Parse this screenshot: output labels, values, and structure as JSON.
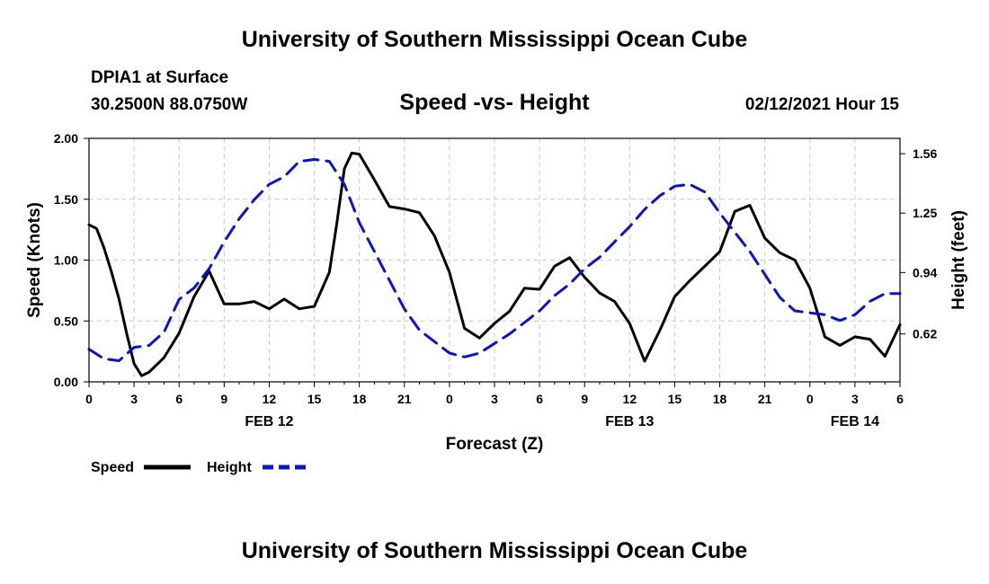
{
  "header": {
    "title": "University of Southern Mississippi Ocean Cube",
    "station": "DPIA1 at Surface",
    "coordinates": "30.2500N 88.0750W",
    "chart_title": "Speed -vs- Height",
    "datetime": "02/12/2021 Hour 15"
  },
  "footer": {
    "title": "University of Southern Mississippi Ocean Cube"
  },
  "legend": [
    {
      "label": "Speed",
      "color": "#000000",
      "style": "solid"
    },
    {
      "label": "Height",
      "color": "#0a14c8",
      "style": "dashed"
    }
  ],
  "chart_data": {
    "type": "line",
    "title": "Speed -vs- Height",
    "xlabel": "Forecast (Z)",
    "ylabel": "Speed (Knots)",
    "y2label": "Height (feet)",
    "xlim": [
      0,
      54
    ],
    "ylim": [
      0,
      2.0
    ],
    "y2lim": [
      0.37,
      1.64
    ],
    "x_ticks": [
      0,
      1.5,
      3.5,
      5.5,
      7.5,
      9.5,
      11.5,
      13.5,
      15.5,
      17.5,
      19.5,
      21.5,
      23.5,
      25.5,
      27.5,
      29.5,
      31.5,
      33.5,
      35.5,
      37.5,
      39.5,
      41.5,
      43.5,
      45.5,
      47.5,
      49.5,
      51.5,
      53.5,
      54
    ],
    "x_tick_positions": [
      0,
      3,
      6,
      9,
      12,
      15,
      18,
      21,
      24,
      27,
      30,
      33,
      36,
      39,
      42,
      45,
      48,
      51,
      54
    ],
    "x_tick_labels": [
      "0",
      "3",
      "6",
      "9",
      "12",
      "15",
      "18",
      "21",
      "0",
      "3",
      "6",
      "9",
      "12",
      "15",
      "18",
      "21",
      "0",
      "3",
      "6"
    ],
    "date_labels": [
      {
        "x": 12,
        "label": "FEB 12"
      },
      {
        "x": 36,
        "label": "FEB 13"
      },
      {
        "x": 51,
        "label": "FEB 14"
      }
    ],
    "y_ticks": [
      0.0,
      0.5,
      1.0,
      1.5,
      2.0
    ],
    "y_tick_labels": [
      "0.00",
      "0.50",
      "1.00",
      "1.50",
      "2.00"
    ],
    "y2_ticks": [
      0.62,
      0.94,
      1.25,
      1.56
    ],
    "y2_tick_labels": [
      "0.62",
      "0.94",
      "1.25",
      "1.56"
    ],
    "series": [
      {
        "name": "Speed",
        "axis": "left",
        "x": [
          0,
          0.5,
          1,
          1.5,
          2,
          2.5,
          3,
          3.5,
          4,
          5,
          6,
          7,
          8,
          9,
          10,
          11,
          12,
          13,
          14,
          15,
          16,
          16.5,
          17,
          17.5,
          18,
          19,
          20,
          21,
          22,
          23,
          24,
          25,
          26,
          27,
          28,
          29,
          30,
          31,
          32,
          33,
          34,
          35,
          36,
          37,
          38,
          39,
          40,
          41,
          42,
          43,
          44,
          45,
          46,
          47,
          48,
          49,
          50,
          51,
          52,
          53,
          54
        ],
        "values": [
          1.29,
          1.26,
          1.1,
          0.9,
          0.68,
          0.4,
          0.15,
          0.05,
          0.08,
          0.2,
          0.4,
          0.7,
          0.91,
          0.64,
          0.64,
          0.66,
          0.6,
          0.68,
          0.6,
          0.62,
          0.9,
          1.3,
          1.75,
          1.88,
          1.87,
          1.66,
          1.44,
          1.42,
          1.39,
          1.2,
          0.9,
          0.44,
          0.36,
          0.48,
          0.58,
          0.77,
          0.76,
          0.95,
          1.02,
          0.86,
          0.73,
          0.66,
          0.48,
          0.17,
          0.42,
          0.7,
          0.83,
          0.95,
          1.07,
          1.4,
          1.45,
          1.18,
          1.06,
          1.0,
          0.77,
          0.37,
          0.3,
          0.37,
          0.35,
          0.21,
          0.47
        ]
      },
      {
        "name": "Height",
        "axis": "right",
        "x": [
          0,
          1,
          2,
          3,
          4,
          5,
          6,
          7,
          8,
          9,
          10,
          11,
          12,
          13,
          14,
          15,
          16,
          17,
          18,
          19,
          20,
          21,
          22,
          23,
          24,
          25,
          26,
          27,
          28,
          29,
          30,
          31,
          32,
          33,
          34,
          35,
          36,
          37,
          38,
          39,
          40,
          41,
          42,
          43,
          44,
          45,
          46,
          47,
          48,
          49,
          50,
          51,
          52,
          53,
          54
        ],
        "values": [
          0.54,
          0.49,
          0.48,
          0.55,
          0.56,
          0.63,
          0.8,
          0.86,
          0.96,
          1.1,
          1.22,
          1.32,
          1.4,
          1.44,
          1.52,
          1.53,
          1.52,
          1.4,
          1.2,
          1.05,
          0.9,
          0.75,
          0.64,
          0.58,
          0.52,
          0.5,
          0.52,
          0.57,
          0.62,
          0.68,
          0.74,
          0.82,
          0.88,
          0.96,
          1.02,
          1.1,
          1.18,
          1.27,
          1.34,
          1.39,
          1.4,
          1.36,
          1.25,
          1.15,
          1.05,
          0.93,
          0.81,
          0.74,
          0.73,
          0.72,
          0.69,
          0.72,
          0.79,
          0.83,
          0.83
        ]
      }
    ]
  }
}
